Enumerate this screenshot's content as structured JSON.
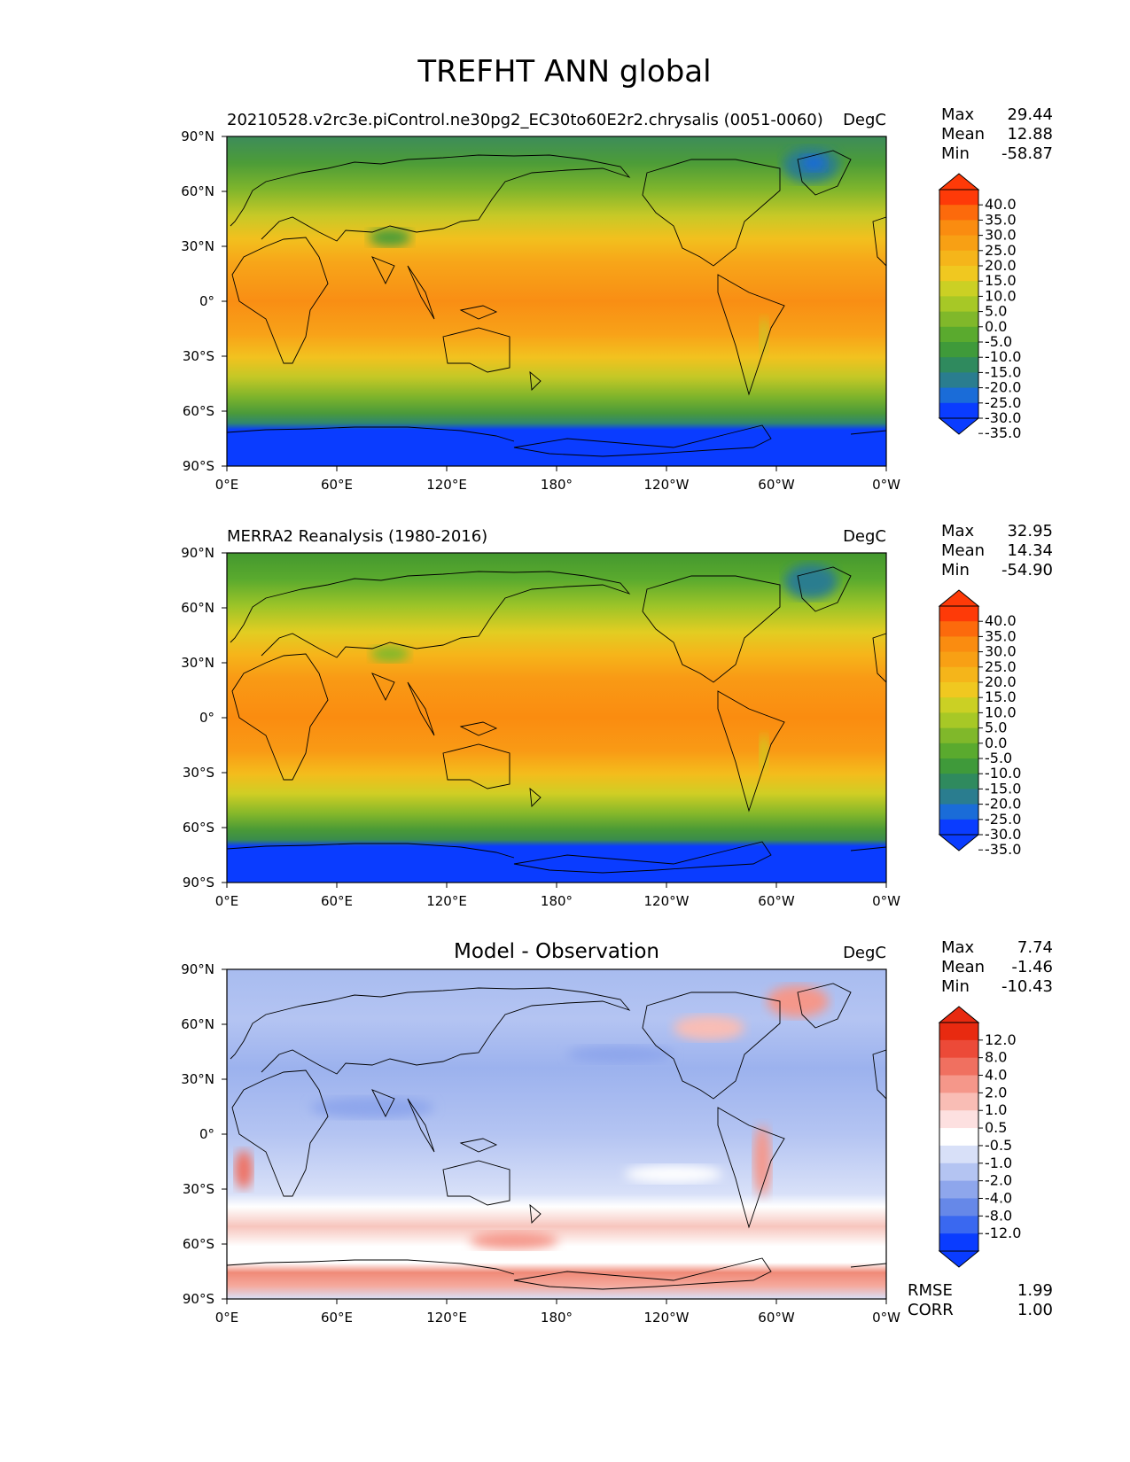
{
  "figure": {
    "title": "TREFHT ANN global"
  },
  "axes": {
    "lat_labels": [
      "90°N",
      "60°N",
      "30°N",
      "0°",
      "30°S",
      "60°S",
      "90°S"
    ],
    "lon_labels": [
      "0°E",
      "60°E",
      "120°E",
      "180°",
      "120°W",
      "60°W",
      "0°W"
    ]
  },
  "colors": {
    "abs_levels": [
      "#0a3cff",
      "#1a6cd8",
      "#2a7d8f",
      "#2f8a5e",
      "#3f9a3a",
      "#5aaa2e",
      "#80b82a",
      "#a7c826",
      "#cbd024",
      "#f0c820",
      "#f5b51a",
      "#f8a014",
      "#fa8c10",
      "#fc6a0c",
      "#fe3a08"
    ],
    "diff_levels": [
      "#0a3cff",
      "#3a68f0",
      "#6688e8",
      "#8ea6ec",
      "#b4c4f2",
      "#d8e0f8",
      "#ffffff",
      "#fde0e0",
      "#f9bdb5",
      "#f5978a",
      "#f07060",
      "#ec4a38",
      "#e82a10"
    ]
  },
  "panels": [
    {
      "id": "model",
      "left_title": "20210528.v2rc3e.piControl.ne30pg2_EC30to60E2r2.chrysalis (0051-0060)",
      "center_title": "",
      "units": "DegC",
      "stats": [
        {
          "label": "Max",
          "value": "29.44"
        },
        {
          "label": "Mean",
          "value": "12.88"
        },
        {
          "label": "Min",
          "value": "-58.87"
        }
      ],
      "colorbar_ticks": [
        "40.0",
        "35.0",
        "30.0",
        "25.0",
        "20.0",
        "15.0",
        "10.0",
        "5.0",
        "0.0",
        "-5.0",
        "-10.0",
        "-15.0",
        "-20.0",
        "-25.0",
        "-30.0",
        "-35.0"
      ]
    },
    {
      "id": "obs",
      "left_title": "MERRA2 Reanalysis (1980-2016)",
      "center_title": "",
      "units": "DegC",
      "stats": [
        {
          "label": "Max",
          "value": "32.95"
        },
        {
          "label": "Mean",
          "value": "14.34"
        },
        {
          "label": "Min",
          "value": "-54.90"
        }
      ],
      "colorbar_ticks": [
        "40.0",
        "35.0",
        "30.0",
        "25.0",
        "20.0",
        "15.0",
        "10.0",
        "5.0",
        "0.0",
        "-5.0",
        "-10.0",
        "-15.0",
        "-20.0",
        "-25.0",
        "-30.0",
        "-35.0"
      ]
    },
    {
      "id": "diff",
      "left_title": "",
      "center_title": "Model - Observation",
      "units": "DegC",
      "stats": [
        {
          "label": "Max",
          "value": "7.74"
        },
        {
          "label": "Mean",
          "value": "-1.46"
        },
        {
          "label": "Min",
          "value": "-10.43"
        }
      ],
      "colorbar_ticks": [
        "12.0",
        "8.0",
        "4.0",
        "2.0",
        "1.0",
        "0.5",
        "-0.5",
        "-1.0",
        "-2.0",
        "-4.0",
        "-8.0",
        "-12.0"
      ],
      "metrics": [
        {
          "label": "RMSE",
          "value": "1.99"
        },
        {
          "label": "CORR",
          "value": "1.00"
        }
      ]
    }
  ]
}
